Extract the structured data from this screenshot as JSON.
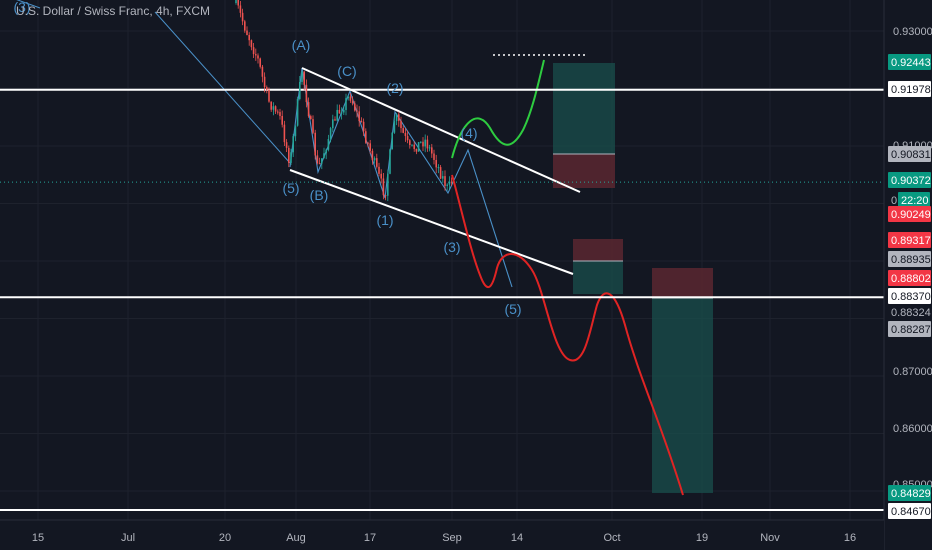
{
  "header": {
    "title": "U.S. Dollar / Swiss Franc, 4h, FXCM"
  },
  "colors": {
    "background": "#131722",
    "up": "#26a69a",
    "down": "#ef5350",
    "wave": "#4a90c8",
    "white": "#ffffff",
    "green_path": "#2ecc40",
    "red_path": "#e02424",
    "axis_text": "#b2b5be",
    "grid": "#1e222d"
  },
  "chart_data": {
    "type": "candlestick",
    "symbol": "U.S. Dollar / Swiss Franc",
    "timeframe": "4h",
    "ylim": [
      0.844,
      0.936
    ],
    "grid": true,
    "y_ticks": [
      "0.93000",
      "0.91000",
      "0.87000",
      "0.86000",
      "0.85000"
    ],
    "x_ticks": [
      "15",
      "Jul",
      "20",
      "Aug",
      "17",
      "Sep",
      "14",
      "Oct",
      "19",
      "Nov",
      "16"
    ],
    "price_labels": [
      {
        "value": "0.92443",
        "bg": "#089981",
        "fg": "#ffffff"
      },
      {
        "value": "0.91978",
        "bg": "#ffffff",
        "fg": "#131722"
      },
      {
        "value": "0.90831",
        "bg": "#b2b5be",
        "fg": "#131722"
      },
      {
        "value": "0.90372",
        "bg": "#089981",
        "fg": "#ffffff"
      },
      {
        "value": "0",
        "bg": "none",
        "fg": "#b2b5be"
      },
      {
        "value": "22:20",
        "bg": "#089981",
        "fg": "#ffffff"
      },
      {
        "value": "0.90249",
        "bg": "#f23645",
        "fg": "#ffffff"
      },
      {
        "value": "0.89317",
        "bg": "#f23645",
        "fg": "#ffffff"
      },
      {
        "value": "0.88935",
        "bg": "#b2b5be",
        "fg": "#131722"
      },
      {
        "value": "0.88802",
        "bg": "#f23645",
        "fg": "#ffffff"
      },
      {
        "value": "0.88370",
        "bg": "#ffffff",
        "fg": "#131722"
      },
      {
        "value": "0.88324",
        "bg": "none",
        "fg": "#b2b5be"
      },
      {
        "value": "0.88287",
        "bg": "#b2b5be",
        "fg": "#131722"
      },
      {
        "value": "0.84829",
        "bg": "#089981",
        "fg": "#ffffff"
      },
      {
        "value": "0.84670",
        "bg": "#ffffff",
        "fg": "#131722"
      }
    ],
    "horizontal_levels": [
      0.91978,
      0.8837,
      0.8467
    ],
    "last_price": 0.90372,
    "wave_labels": [
      "(3)",
      "(A)",
      "(C)",
      "(2)",
      "(4)",
      "(5)",
      "(B)",
      "(1)",
      "(3)",
      "(5)"
    ],
    "channel": {
      "upper": [
        [
          "Aug 1",
          0.9227
        ],
        [
          "Sep 28",
          0.9007
        ]
      ],
      "lower": [
        [
          "Jul 31",
          0.9053
        ],
        [
          "Sep 20",
          0.8885
        ]
      ]
    },
    "position_boxes": [
      {
        "kind": "long",
        "entry": 0.90831,
        "stop": 0.90249,
        "target": 0.92443
      },
      {
        "kind": "short",
        "entry": 0.88935,
        "stop": 0.89317,
        "target": 0.88287
      },
      {
        "kind": "short",
        "entry": 0.88324,
        "stop": 0.88802,
        "target": 0.84829
      }
    ]
  }
}
